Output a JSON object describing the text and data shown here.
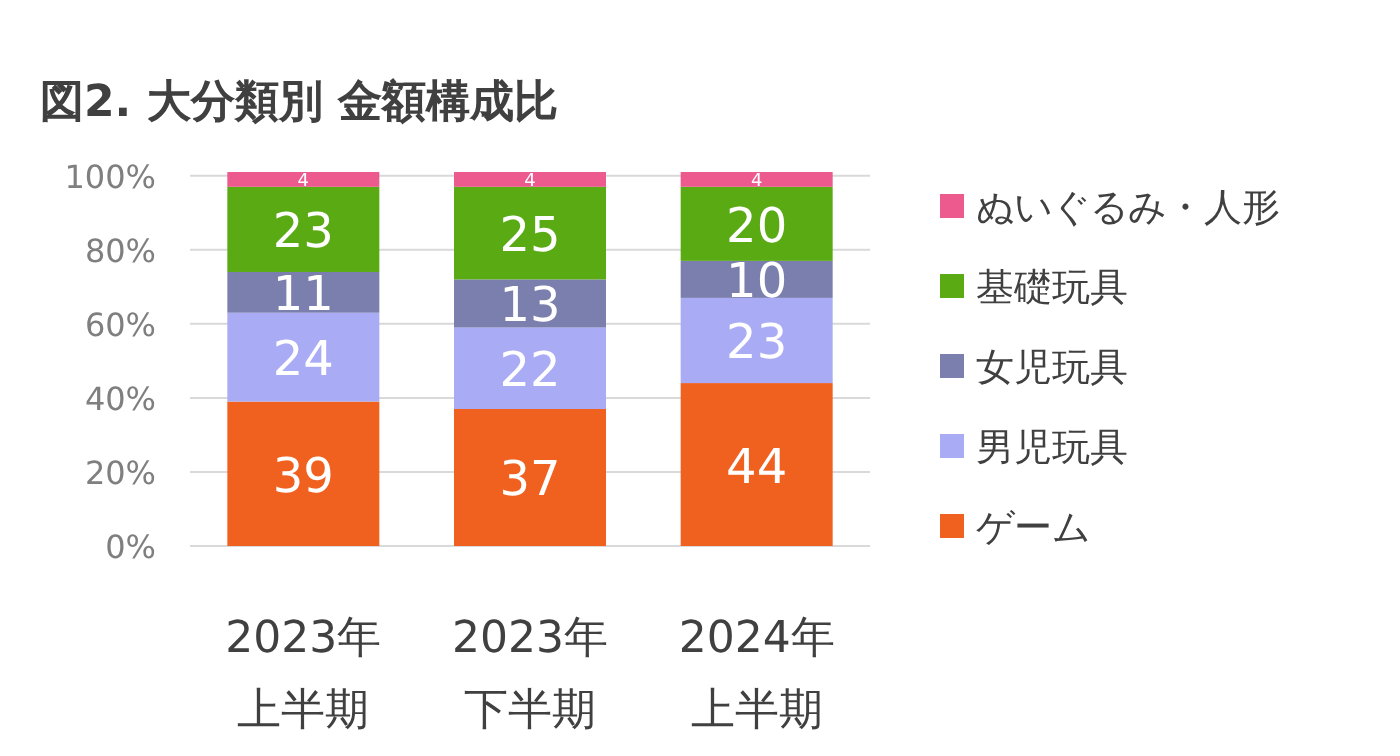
{
  "chart_data": {
    "type": "bar",
    "title": "図2.  大分類別  金額構成比",
    "stacked": true,
    "data_labels": true,
    "grid": "y",
    "legend": "right",
    "categories": [
      "2023年上半期",
      "2023年下半期",
      "2024年上半期"
    ],
    "ylim": [
      0,
      101
    ],
    "yticks": [
      {
        "value": 0,
        "label": "0%"
      },
      {
        "value": 20,
        "label": "20%"
      },
      {
        "value": 40,
        "label": "40%"
      },
      {
        "value": 60,
        "label": "60%"
      },
      {
        "value": 80,
        "label": "80%"
      },
      {
        "value": 100,
        "label": "100%"
      }
    ],
    "series": [
      {
        "name": "ゲーム",
        "color": "#f0601e",
        "values": [
          39,
          37,
          44
        ]
      },
      {
        "name": "男児玩具",
        "color": "#a9acf4",
        "values": [
          24,
          22,
          23
        ]
      },
      {
        "name": "女児玩具",
        "color": "#7b7fae",
        "values": [
          11,
          13,
          10
        ]
      },
      {
        "name": "基礎玩具",
        "color": "#5aaa14",
        "values": [
          23,
          25,
          20
        ]
      },
      {
        "name": "ぬいぐるみ・人形",
        "color": "#ec5a8e",
        "values": [
          4,
          4,
          4
        ]
      }
    ]
  }
}
